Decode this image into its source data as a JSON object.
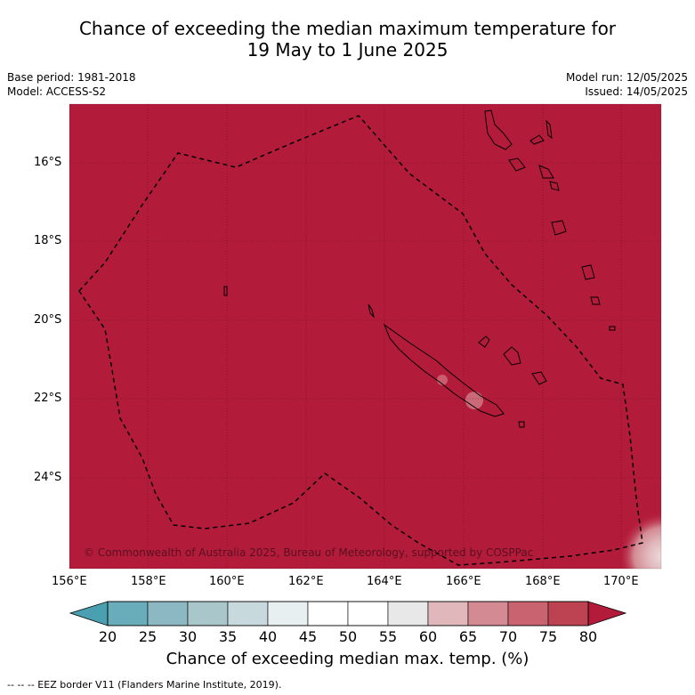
{
  "title": {
    "line1": "Chance of exceeding the median maximum temperature for",
    "line2": "19 May to 1 June 2025"
  },
  "meta": {
    "base_period": "Base period: 1981-2018",
    "model": "Model: ACCESS-S2",
    "model_run": "Model run: 12/05/2025",
    "issued": "Issued: 14/05/2025"
  },
  "map": {
    "latitude_labels": [
      "16°S",
      "18°S",
      "20°S",
      "22°S",
      "24°S"
    ],
    "longitude_labels": [
      "156°E",
      "158°E",
      "160°E",
      "162°E",
      "164°E",
      "166°E",
      "168°E",
      "170°E"
    ],
    "copyright": "© Commonwealth of Australia 2025, Bureau of Meteorology, supported by COSPPac",
    "fill_color": "#b31b3a"
  },
  "colorbar": {
    "ticks": [
      "20",
      "25",
      "30",
      "35",
      "40",
      "45",
      "50",
      "55",
      "60",
      "65",
      "70",
      "75",
      "80"
    ],
    "colors": [
      "#69adbb",
      "#8bb8c2",
      "#a9c6cb",
      "#c8d9dd",
      "#e8eff1",
      "#ffffff",
      "#ffffff",
      "#e8e8e8",
      "#e0b8bc",
      "#d48a93",
      "#c8636f",
      "#be4352"
    ],
    "under_color": "#4aa0b0",
    "over_color": "#b31b3a",
    "label": "Chance of exceeding median max. temp. (%)"
  },
  "legend": {
    "eez": "--  --  -- EEZ border V11 (Flanders Marine Institute, 2019)."
  }
}
